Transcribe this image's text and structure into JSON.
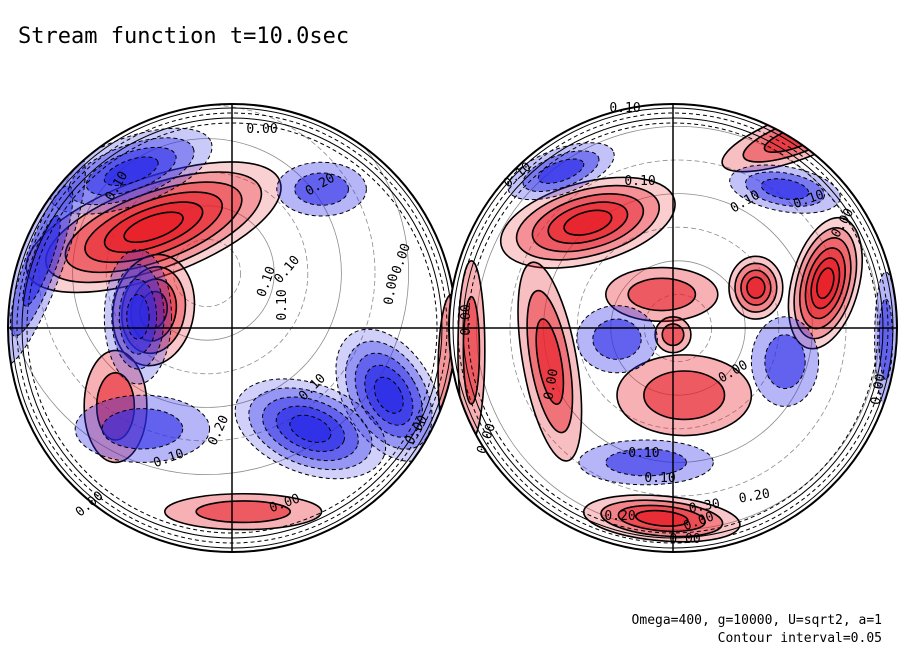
{
  "chart_data": {
    "type": "contour",
    "title": "Stream function t=10.0sec",
    "parameters": "Omega=400, g=10000, U=sqrt2, a=1",
    "contour_interval": "Contour interval=0.05",
    "colors": {
      "positive": "#e8202a",
      "negative": "#2b2be8",
      "line": "#000000"
    },
    "hemispheres": [
      {
        "name": "left",
        "labels": [
          "0.00",
          "0.10",
          "0.20",
          "0.10",
          "0.10",
          "0.00",
          "0.10",
          "0.00",
          "0.10",
          "0.20",
          "0.10",
          "0.00",
          "0.00",
          "0.00"
        ],
        "blobs": [
          {
            "sign": 1,
            "level": 0.3,
            "center": [
              -0.35,
              0.45
            ],
            "size": [
              0.6,
              0.22
            ],
            "angle": 20
          },
          {
            "sign": 1,
            "level": 0.2,
            "center": [
              -0.35,
              0.08
            ],
            "size": [
              0.18,
              0.25
            ],
            "angle": -10
          },
          {
            "sign": 1,
            "level": 0.1,
            "center": [
              -0.52,
              -0.35
            ],
            "size": [
              0.14,
              0.25
            ],
            "angle": 0
          },
          {
            "sign": 1,
            "level": 0.1,
            "center": [
              0.05,
              -0.82
            ],
            "size": [
              0.35,
              0.08
            ],
            "angle": 0
          },
          {
            "sign": 1,
            "level": 0.05,
            "center": [
              0.98,
              -0.2
            ],
            "size": [
              0.06,
              0.35
            ],
            "angle": 0
          },
          {
            "sign": -1,
            "level": 0.25,
            "center": [
              0.7,
              -0.3
            ],
            "size": [
              0.2,
              0.32
            ],
            "angle": 30
          },
          {
            "sign": -1,
            "level": 0.25,
            "center": [
              0.35,
              -0.45
            ],
            "size": [
              0.35,
              0.2
            ],
            "angle": -20
          },
          {
            "sign": -1,
            "level": 0.2,
            "center": [
              -0.42,
              0.05
            ],
            "size": [
              0.15,
              0.3
            ],
            "angle": 0
          },
          {
            "sign": -1,
            "level": 0.2,
            "center": [
              -0.45,
              0.7
            ],
            "size": [
              0.38,
              0.15
            ],
            "angle": 20
          },
          {
            "sign": -1,
            "level": 0.15,
            "center": [
              -0.85,
              0.3
            ],
            "size": [
              0.1,
              0.5
            ],
            "angle": -20
          },
          {
            "sign": -1,
            "level": 0.1,
            "center": [
              -0.4,
              -0.45
            ],
            "size": [
              0.3,
              0.15
            ],
            "angle": 0
          },
          {
            "sign": -1,
            "level": 0.1,
            "center": [
              0.4,
              0.62
            ],
            "size": [
              0.2,
              0.12
            ],
            "angle": 0
          }
        ]
      },
      {
        "name": "right",
        "labels": [
          "0.10",
          "0.10",
          "0.10",
          "0.10",
          "0.10",
          "0.00",
          "0.00",
          "0.00",
          "0.00",
          "0.00",
          "0.00",
          "-0.10",
          "0.10",
          "0.30",
          "0.20",
          "0.20",
          "0.00",
          "0.00"
        ],
        "blobs": [
          {
            "sign": 1,
            "level": 0.25,
            "center": [
              -0.38,
              0.47
            ],
            "size": [
              0.4,
              0.18
            ],
            "angle": 15
          },
          {
            "sign": 1,
            "level": 0.3,
            "center": [
              0.68,
              0.2
            ],
            "size": [
              0.15,
              0.3
            ],
            "angle": -15
          },
          {
            "sign": 1,
            "level": 0.2,
            "center": [
              0.37,
              0.18
            ],
            "size": [
              0.12,
              0.14
            ],
            "angle": 0
          },
          {
            "sign": 1,
            "level": 0.2,
            "center": [
              -0.05,
              -0.85
            ],
            "size": [
              0.35,
              0.1
            ],
            "angle": -5
          },
          {
            "sign": 1,
            "level": 0.15,
            "center": [
              0.55,
              0.85
            ],
            "size": [
              0.35,
              0.1
            ],
            "angle": 20
          },
          {
            "sign": 1,
            "level": 0.15,
            "center": [
              -0.55,
              -0.15
            ],
            "size": [
              0.12,
              0.45
            ],
            "angle": 10
          },
          {
            "sign": 1,
            "level": 0.1,
            "center": [
              -0.9,
              -0.1
            ],
            "size": [
              0.06,
              0.4
            ],
            "angle": 0
          },
          {
            "sign": 1,
            "level": 0.1,
            "center": [
              -0.05,
              0.15
            ],
            "size": [
              0.25,
              0.12
            ],
            "angle": 0
          },
          {
            "sign": 1,
            "level": 0.1,
            "center": [
              0.05,
              -0.3
            ],
            "size": [
              0.3,
              0.18
            ],
            "angle": 0
          },
          {
            "sign": 1,
            "level": 0.1,
            "center": [
              0.0,
              -0.03
            ],
            "size": [
              0.08,
              0.08
            ],
            "angle": 0
          },
          {
            "sign": -1,
            "level": 0.15,
            "center": [
              -0.5,
              0.7
            ],
            "size": [
              0.25,
              0.1
            ],
            "angle": 20
          },
          {
            "sign": -1,
            "level": 0.15,
            "center": [
              0.5,
              0.62
            ],
            "size": [
              0.25,
              0.1
            ],
            "angle": -10
          },
          {
            "sign": -1,
            "level": 0.1,
            "center": [
              -0.25,
              -0.05
            ],
            "size": [
              0.18,
              0.15
            ],
            "angle": 0
          },
          {
            "sign": -1,
            "level": 0.1,
            "center": [
              -0.12,
              -0.6
            ],
            "size": [
              0.3,
              0.1
            ],
            "angle": 0
          },
          {
            "sign": -1,
            "level": 0.1,
            "center": [
              0.5,
              -0.15
            ],
            "size": [
              0.15,
              0.2
            ],
            "angle": 0
          },
          {
            "sign": -1,
            "level": 0.1,
            "center": [
              0.95,
              -0.05
            ],
            "size": [
              0.05,
              0.3
            ],
            "angle": 0
          }
        ]
      }
    ]
  }
}
